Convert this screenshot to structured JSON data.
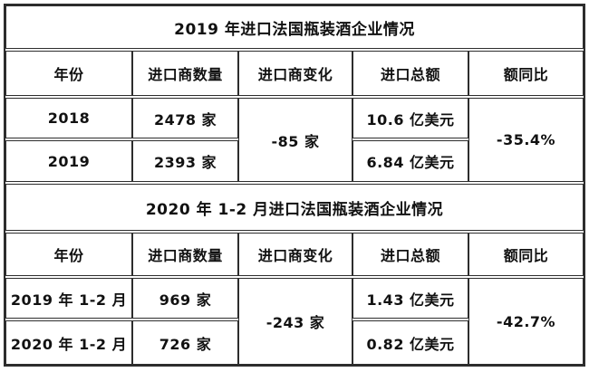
{
  "page": {
    "background_color": "#ffffff",
    "border_color": "#2d2d2d",
    "text_color": "#111111"
  },
  "sections": [
    {
      "title": "2019 年进口法国瓶装酒企业情况",
      "headers": [
        "年份",
        "进口商数量",
        "进口商变化",
        "进口总额",
        "额同比"
      ],
      "rows": [
        {
          "year": "2018",
          "importers": "2478 家",
          "total": "10.6 亿美元"
        },
        {
          "year": "2019",
          "importers": "2393 家",
          "total": "6.84 亿美元"
        }
      ],
      "change": "-85 家",
      "yoy": "-35.4%"
    },
    {
      "title": "2020 年 1-2 月进口法国瓶装酒企业情况",
      "headers": [
        "年份",
        "进口商数量",
        "进口商变化",
        "进口总额",
        "额同比"
      ],
      "rows": [
        {
          "year": "2019 年 1-2 月",
          "importers": "969 家",
          "total": "1.43 亿美元"
        },
        {
          "year": "2020 年 1-2 月",
          "importers": "726 家",
          "total": "0.82 亿美元"
        }
      ],
      "change": "-243 家",
      "yoy": "-42.7%"
    }
  ],
  "chart_data": {
    "type": "table",
    "tables": [
      {
        "title": "2019 年进口法国瓶装酒企业情况",
        "columns": [
          "年份",
          "进口商数量",
          "进口商变化",
          "进口总额",
          "额同比"
        ],
        "rows": [
          [
            "2018",
            "2478 家",
            "-85 家",
            "10.6 亿美元",
            "-35.4%"
          ],
          [
            "2019",
            "2393 家",
            "-85 家",
            "6.84 亿美元",
            "-35.4%"
          ]
        ],
        "merged_columns": [
          "进口商变化",
          "额同比"
        ]
      },
      {
        "title": "2020 年 1-2 月进口法国瓶装酒企业情况",
        "columns": [
          "年份",
          "进口商数量",
          "进口商变化",
          "进口总额",
          "额同比"
        ],
        "rows": [
          [
            "2019 年 1-2 月",
            "969 家",
            "-243 家",
            "1.43 亿美元",
            "-42.7%"
          ],
          [
            "2020 年 1-2 月",
            "726 家",
            "-243 家",
            "0.82 亿美元",
            "-42.7%"
          ]
        ],
        "merged_columns": [
          "进口商变化",
          "额同比"
        ]
      }
    ]
  }
}
